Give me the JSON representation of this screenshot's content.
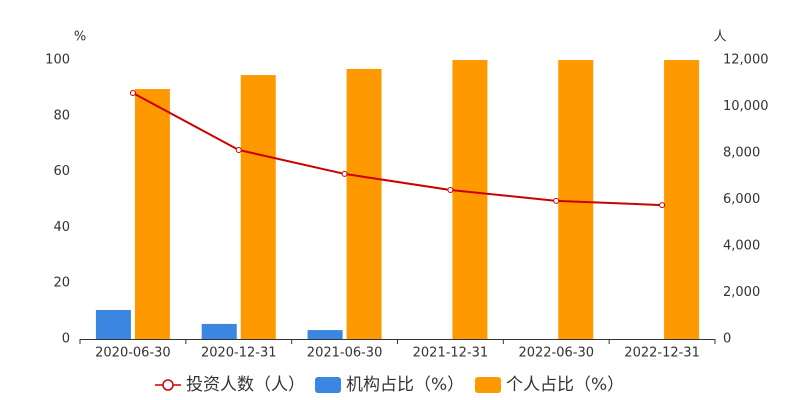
{
  "chart_data": {
    "type": "bar-line",
    "y_unit": "%",
    "y2_unit": "人",
    "categories": [
      "2020-06-30",
      "2020-12-31",
      "2021-06-30",
      "2021-12-31",
      "2022-06-30",
      "2022-12-31"
    ],
    "series": [
      {
        "name": "投资人数（人）",
        "type": "line",
        "axis": "y2",
        "color": "#cc0000",
        "values": [
          10580,
          8130,
          7100,
          6410,
          5940,
          5760
        ]
      },
      {
        "name": "机构占比（%）",
        "type": "bar",
        "color": "#3b86e0",
        "values": [
          10.4,
          5.4,
          3.2,
          0,
          0,
          0
        ]
      },
      {
        "name": "个人占比（%）",
        "type": "bar",
        "color": "#ff9900",
        "values": [
          89.6,
          94.6,
          96.8,
          100,
          100,
          100
        ]
      }
    ],
    "ylim": [
      0,
      100
    ],
    "yticks": [
      0,
      20,
      40,
      60,
      80,
      100
    ],
    "y2lim": [
      0,
      12000
    ],
    "y2ticks": [
      0,
      {
        "value": 2000,
        "label": "2,000"
      },
      {
        "value": 4000,
        "label": "4,000"
      },
      {
        "value": 6000,
        "label": "6,000"
      },
      {
        "value": 8000,
        "label": "8,000"
      },
      {
        "value": 10000,
        "label": "10,000"
      },
      {
        "value": 12000,
        "label": "12,000"
      }
    ]
  }
}
